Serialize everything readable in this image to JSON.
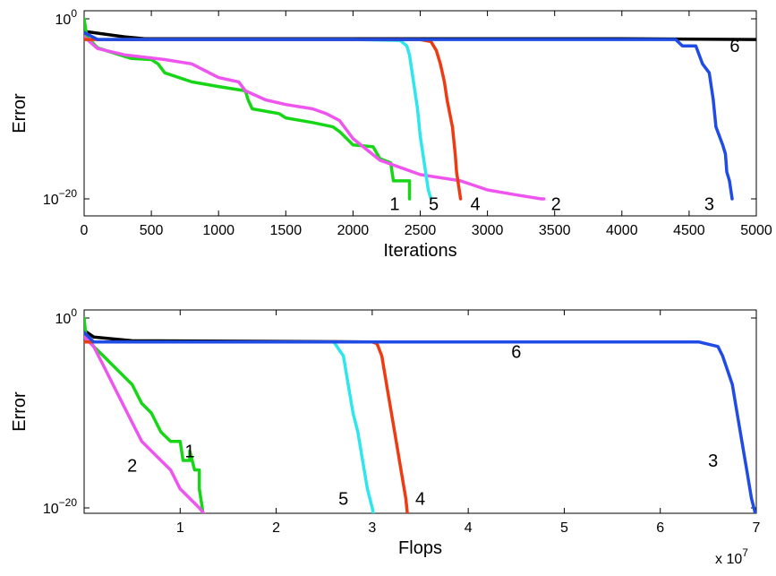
{
  "chart_data": [
    {
      "type": "line",
      "xlabel": "Iterations",
      "ylabel": "Error",
      "yscale": "log",
      "xlim": [
        0,
        5000
      ],
      "ylim": [
        1e-22,
        1
      ],
      "xticks": [
        "0",
        "500",
        "1000",
        "1500",
        "2000",
        "2500",
        "3000",
        "3500",
        "4000",
        "4500",
        "5000"
      ],
      "yticks": [
        {
          "base": "10",
          "exp": "0"
        },
        {
          "base": "10",
          "exp": "−20"
        }
      ],
      "grid": false,
      "series": [
        {
          "label": "6",
          "color": "#000000",
          "points": [
            [
              0,
              0.04
            ],
            [
              300,
              0.01
            ],
            [
              450,
              0.006
            ],
            [
              2000,
              0.006
            ],
            [
              4000,
              0.006
            ],
            [
              5000,
              0.005
            ]
          ]
        },
        {
          "label": "1",
          "color": "#17d617",
          "points": [
            [
              0,
              1
            ],
            [
              20,
              0.01
            ],
            [
              100,
              0.0006
            ],
            [
              200,
              0.0002
            ],
            [
              350,
              4e-05
            ],
            [
              500,
              3e-05
            ],
            [
              550,
              1e-05
            ],
            [
              600,
              1e-06
            ],
            [
              800,
              1e-07
            ],
            [
              1000,
              3e-08
            ],
            [
              1200,
              1e-08
            ],
            [
              1220,
              1e-09
            ],
            [
              1250,
              1e-10
            ],
            [
              1450,
              3e-11
            ],
            [
              1500,
              1e-11
            ],
            [
              1700,
              3e-12
            ],
            [
              1850,
              1e-12
            ],
            [
              1900,
              3e-13
            ],
            [
              2000,
              1e-14
            ],
            [
              2150,
              6e-15
            ],
            [
              2200,
              3e-16
            ],
            [
              2280,
              1e-16
            ],
            [
              2300,
              1e-18
            ],
            [
              2380,
              1e-18
            ],
            [
              2420,
              1e-18
            ],
            [
              2420,
              1e-20
            ]
          ]
        },
        {
          "label": "2",
          "color": "#ee55ee",
          "points": [
            [
              0,
              0.01
            ],
            [
              100,
              0.0005
            ],
            [
              300,
              0.0001
            ],
            [
              600,
              3e-05
            ],
            [
              800,
              1e-05
            ],
            [
              1000,
              3e-07
            ],
            [
              1150,
              1e-07
            ],
            [
              1200,
              1e-08
            ],
            [
              1350,
              1e-09
            ],
            [
              1500,
              3e-10
            ],
            [
              1700,
              1e-10
            ],
            [
              1800,
              3e-11
            ],
            [
              1900,
              5e-12
            ],
            [
              2000,
              5e-14
            ],
            [
              2200,
              2e-16
            ],
            [
              2500,
              5e-18
            ],
            [
              2800,
              1e-18
            ],
            [
              3000,
              1e-19
            ],
            [
              3200,
              3e-20
            ],
            [
              3400,
              1e-20
            ],
            [
              3420,
              1e-20
            ]
          ]
        },
        {
          "label": "5",
          "color": "#2ee6ee",
          "points": [
            [
              0,
              0.005
            ],
            [
              2000,
              0.005
            ],
            [
              2350,
              0.004
            ],
            [
              2400,
              0.001
            ],
            [
              2420,
              0.0001
            ],
            [
              2450,
              1e-07
            ],
            [
              2480,
              1e-10
            ],
            [
              2500,
              1e-13
            ],
            [
              2520,
              1e-15
            ],
            [
              2540,
              1e-17
            ],
            [
              2560,
              1e-19
            ],
            [
              2580,
              1e-20
            ]
          ]
        },
        {
          "label": "4",
          "color": "#ee3b12",
          "points": [
            [
              0,
              0.005
            ],
            [
              2500,
              0.005
            ],
            [
              2580,
              0.003
            ],
            [
              2620,
              0.0003
            ],
            [
              2650,
              1e-05
            ],
            [
              2680,
              1e-07
            ],
            [
              2700,
              1e-09
            ],
            [
              2740,
              1e-12
            ],
            [
              2760,
              1e-15
            ],
            [
              2770,
              1e-17
            ],
            [
              2790,
              1e-19
            ],
            [
              2800,
              1e-20
            ]
          ]
        },
        {
          "label": "3",
          "color": "#1f4be6",
          "points": [
            [
              0,
              0.03
            ],
            [
              100,
              0.005
            ],
            [
              4000,
              0.005
            ],
            [
              4400,
              0.005
            ],
            [
              4450,
              0.001
            ],
            [
              4550,
              0.001
            ],
            [
              4600,
              1e-05
            ],
            [
              4650,
              1e-06
            ],
            [
              4680,
              1e-09
            ],
            [
              4700,
              1e-12
            ],
            [
              4750,
              1e-14
            ],
            [
              4770,
              1e-15
            ],
            [
              4780,
              1e-17
            ],
            [
              4800,
              1e-18
            ],
            [
              4820,
              1e-20
            ]
          ]
        }
      ],
      "labels": [
        {
          "text": "6",
          "x": 4840,
          "y": 0.001
        },
        {
          "text": "1",
          "x": 2310,
          "y": 3e-21
        },
        {
          "text": "5",
          "x": 2600,
          "y": 3e-21
        },
        {
          "text": "4",
          "x": 2910,
          "y": 3e-21
        },
        {
          "text": "2",
          "x": 3510,
          "y": 3e-21
        },
        {
          "text": "3",
          "x": 4650,
          "y": 3e-21
        }
      ]
    },
    {
      "type": "line",
      "xlabel": "Flops",
      "ylabel": "Error",
      "yscale": "log",
      "xlim": [
        0,
        70000000.0
      ],
      "ylim": [
        1e-22,
        1
      ],
      "xticks": [
        "1",
        "2",
        "3",
        "4",
        "5",
        "6",
        "7"
      ],
      "xtick_values": [
        10000000.0,
        20000000.0,
        30000000.0,
        40000000.0,
        50000000.0,
        60000000.0,
        70000000.0
      ],
      "x_multiplier": {
        "base": "x 10",
        "exp": "7"
      },
      "yticks": [
        {
          "base": "10",
          "exp": "0"
        },
        {
          "base": "10",
          "exp": "−20"
        }
      ],
      "grid": false,
      "series": [
        {
          "label": "6",
          "color": "#000000",
          "points": [
            [
              0,
              0.05
            ],
            [
              1000000.0,
              0.01
            ],
            [
              5000000.0,
              0.004
            ],
            [
              30000000.0,
              0.003
            ],
            [
              57000000.0,
              0.003
            ]
          ]
        },
        {
          "label": "1",
          "color": "#17d617",
          "points": [
            [
              0,
              1
            ],
            [
              200000.0,
              0.01
            ],
            [
              1000000.0,
              0.001
            ],
            [
              2000000.0,
              0.0001
            ],
            [
              3000000.0,
              1e-05
            ],
            [
              4000000.0,
              1e-06
            ],
            [
              5000000.0,
              1e-07
            ],
            [
              6000000.0,
              1e-09
            ],
            [
              7000000.0,
              1e-10
            ],
            [
              8000000.0,
              1e-12
            ],
            [
              9000000.0,
              1e-13
            ],
            [
              10000000.0,
              1e-13
            ],
            [
              10300000.0,
              1e-15
            ],
            [
              11000000.0,
              1e-15
            ],
            [
              11000000.0,
              1e-14
            ],
            [
              11500000.0,
              1e-16
            ],
            [
              12000000.0,
              1e-16
            ],
            [
              12000000.0,
              1e-18
            ],
            [
              12300000.0,
              1e-20
            ],
            [
              12400000.0,
              1e-21
            ]
          ]
        },
        {
          "label": "2",
          "color": "#ee55ee",
          "points": [
            [
              0,
              0.01
            ],
            [
              1000000.0,
              0.001
            ],
            [
              2000000.0,
              1e-05
            ],
            [
              3000000.0,
              1e-07
            ],
            [
              4000000.0,
              1e-09
            ],
            [
              5000000.0,
              1e-11
            ],
            [
              6000000.0,
              1e-13
            ],
            [
              7000000.0,
              1e-14
            ],
            [
              8000000.0,
              1e-15
            ],
            [
              9000000.0,
              1e-16
            ],
            [
              10000000.0,
              1e-18
            ],
            [
              11000000.0,
              1e-19
            ],
            [
              12000000.0,
              1e-20
            ],
            [
              12800000.0,
              1e-21
            ]
          ]
        },
        {
          "label": "5",
          "color": "#2ee6ee",
          "points": [
            [
              0,
              0.003
            ],
            [
              26000000.0,
              0.003
            ],
            [
              27000000.0,
              0.0001
            ],
            [
              27500000.0,
              1e-07
            ],
            [
              28000000.0,
              1e-10
            ],
            [
              28500000.0,
              1e-12
            ],
            [
              29000000.0,
              1e-15
            ],
            [
              29500000.0,
              1e-18
            ],
            [
              30000000.0,
              1e-20
            ],
            [
              30200000.0,
              1e-21
            ]
          ]
        },
        {
          "label": "4",
          "color": "#ee3b12",
          "points": [
            [
              0,
              0.003
            ],
            [
              30000000.0,
              0.003
            ],
            [
              30500000.0,
              0.002
            ],
            [
              31000000.0,
              0.0001
            ],
            [
              31500000.0,
              1e-07
            ],
            [
              32000000.0,
              1e-10
            ],
            [
              32500000.0,
              1e-13
            ],
            [
              33000000.0,
              1e-16
            ],
            [
              33500000.0,
              1e-19
            ],
            [
              33700000.0,
              1e-21
            ]
          ]
        },
        {
          "label": "3",
          "color": "#1f4be6",
          "points": [
            [
              0,
              0.03
            ],
            [
              1000000.0,
              0.003
            ],
            [
              64000000.0,
              0.003
            ],
            [
              66000000.0,
              0.001
            ],
            [
              66500000.0,
              0.0001
            ],
            [
              67500000.0,
              1e-07
            ],
            [
              68000000.0,
              1e-10
            ],
            [
              68500000.0,
              1e-13
            ],
            [
              69000000.0,
              1e-16
            ],
            [
              69500000.0,
              1e-19
            ],
            [
              70000000.0,
              1e-21
            ]
          ]
        }
      ],
      "labels": [
        {
          "text": "6",
          "x": 45000000.0,
          "y": 0.0003
        },
        {
          "text": "1",
          "x": 11000000.0,
          "y": 1e-14
        },
        {
          "text": "2",
          "x": 5000000.0,
          "y": 3e-16
        },
        {
          "text": "5",
          "x": 27000000.0,
          "y": 1e-19
        },
        {
          "text": "4",
          "x": 35000000.0,
          "y": 1e-19
        },
        {
          "text": "3",
          "x": 65500000.0,
          "y": 1e-15
        }
      ]
    }
  ]
}
